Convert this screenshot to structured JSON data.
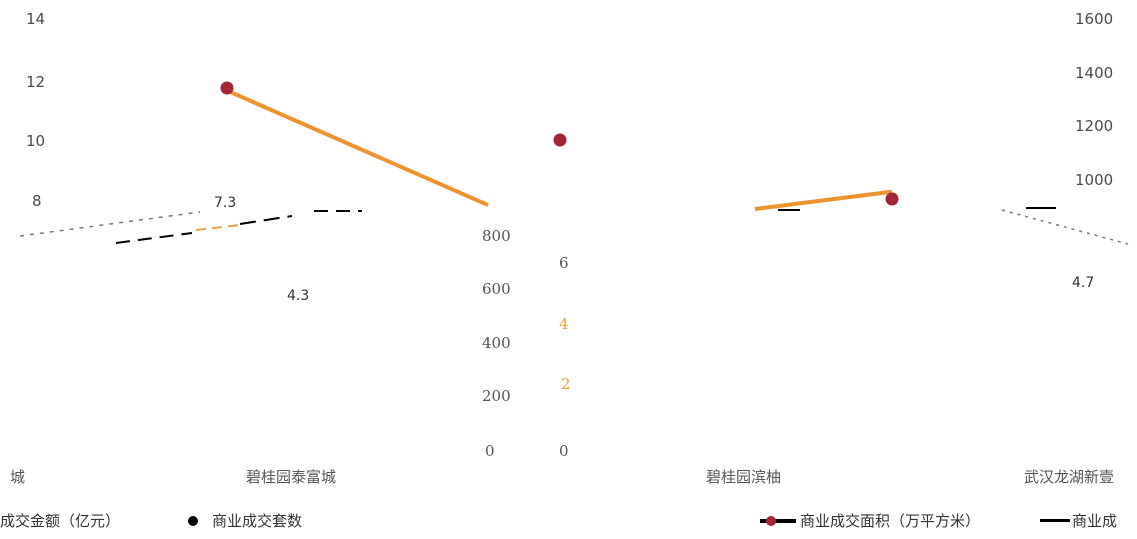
{
  "chart_data": {
    "type": "line",
    "categories": [
      "城",
      "碧桂园泰富城",
      "",
      "碧桂园滨柚",
      "武汉龙湖新壹"
    ],
    "left_axis": {
      "ticks": [
        "14",
        "12",
        "10",
        "8"
      ],
      "range": [
        0,
        14
      ]
    },
    "right_axis": {
      "ticks": [
        "1600",
        "1400",
        "1200",
        "1000"
      ],
      "range": [
        0,
        1600
      ]
    },
    "inner_axis_left": {
      "ticks": [
        "800",
        "600",
        "400",
        "200",
        "0"
      ]
    },
    "inner_axis_right": {
      "ticks": [
        "6",
        "4",
        "2",
        "0"
      ]
    },
    "series": [
      {
        "name": "商业成交面积（万平方米）",
        "color": "#f0922e",
        "points": [
          [
            1,
            1353
          ],
          [
            2,
            925
          ],
          [
            4,
            975
          ]
        ]
      },
      {
        "name": "商业成交套数",
        "color": "#a52537",
        "points": [
          [
            1,
            11.75
          ],
          [
            2,
            10
          ],
          [
            4,
            7.4
          ]
        ]
      }
    ],
    "data_labels": [
      {
        "text": "7.3"
      },
      {
        "text": "4.3"
      },
      {
        "text": "4.7"
      }
    ],
    "legend": [
      "成交金额（亿元）",
      "商业成交套数",
      "商业成交面积（万平方米）",
      "商业成"
    ],
    "colors": {
      "orange": "#f0922e",
      "crimson": "#a52537",
      "black": "#000000"
    }
  }
}
